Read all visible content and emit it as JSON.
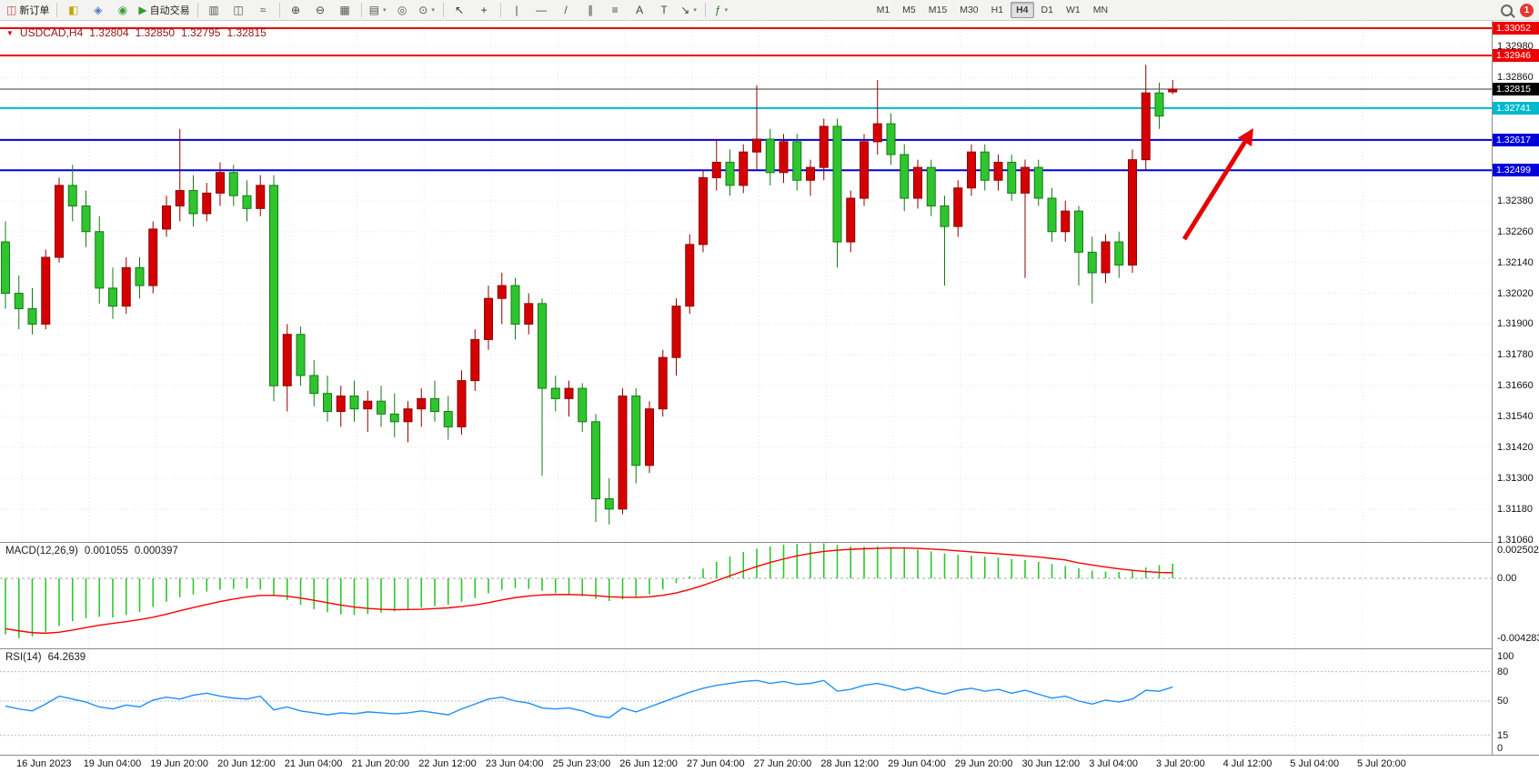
{
  "toolbar": {
    "notification_count": "1",
    "timeframes": [
      "M1",
      "M5",
      "M15",
      "M30",
      "H1",
      "H4",
      "D1",
      "W1",
      "MN"
    ],
    "active_timeframe": "H4",
    "items": [
      {
        "type": "button",
        "name": "new-order-button",
        "glyph": "◫",
        "glyph_color": "#b05050",
        "label": "新订单"
      },
      {
        "type": "sep"
      },
      {
        "type": "button",
        "name": "market-watch-button",
        "glyph": "◧",
        "glyph_color": "#c8a200"
      },
      {
        "type": "button",
        "name": "navigator-button",
        "glyph": "◈",
        "glyph_color": "#4a76b8"
      },
      {
        "type": "button",
        "name": "terminal-button",
        "glyph": "◉",
        "glyph_color": "#3f9e3f"
      },
      {
        "type": "button",
        "name": "autotrade-button",
        "glyph": "▶",
        "glyph_color": "#2e9e2e",
        "label": "自动交易"
      },
      {
        "type": "sep"
      },
      {
        "type": "button",
        "name": "bar-chart-button",
        "glyph": "▥",
        "glyph_color": "#555555"
      },
      {
        "type": "button",
        "name": "candlestick-button",
        "glyph": "◫",
        "glyph_color": "#555555"
      },
      {
        "type": "button",
        "name": "line-chart-button",
        "glyph": "≈",
        "glyph_color": "#555555"
      },
      {
        "type": "sep"
      },
      {
        "type": "button",
        "name": "zoom-in-button",
        "glyph": "⊕",
        "glyph_color": "#444444"
      },
      {
        "type": "button",
        "name": "zoom-out-button",
        "glyph": "⊖",
        "glyph_color": "#444444"
      },
      {
        "type": "button",
        "name": "tile-windows-button",
        "glyph": "▦",
        "glyph_color": "#555555"
      },
      {
        "type": "sep"
      },
      {
        "type": "button",
        "name": "new-chart-button",
        "glyph": "▤",
        "glyph_color": "#555555",
        "dropdown": true
      },
      {
        "type": "button",
        "name": "auto-scroll-button",
        "glyph": "◎",
        "glyph_color": "#555555"
      },
      {
        "type": "button",
        "name": "chart-shift-button",
        "glyph": "⊙",
        "glyph_color": "#555555",
        "dropdown": true
      },
      {
        "type": "sep"
      },
      {
        "type": "button",
        "name": "cursor-button",
        "glyph": "↖",
        "glyph_color": "#333333"
      },
      {
        "type": "button",
        "name": "crosshair-button",
        "glyph": "+",
        "glyph_color": "#333333"
      },
      {
        "type": "sep"
      },
      {
        "type": "button",
        "name": "vertical-line-button",
        "glyph": "|",
        "glyph_color": "#444444"
      },
      {
        "type": "button",
        "name": "horizontal-line-button",
        "glyph": "—",
        "glyph_color": "#444444"
      },
      {
        "type": "button",
        "name": "trendline-button",
        "glyph": "/",
        "glyph_color": "#444444"
      },
      {
        "type": "button",
        "name": "channel-button",
        "glyph": "∥",
        "glyph_color": "#444444"
      },
      {
        "type": "button",
        "name": "fibonacci-button",
        "glyph": "≡",
        "glyph_color": "#444444"
      },
      {
        "type": "button",
        "name": "text-button",
        "glyph": "A",
        "glyph_color": "#444444"
      },
      {
        "type": "button",
        "name": "label-button",
        "glyph": "T",
        "glyph_color": "#444444"
      },
      {
        "type": "button",
        "name": "arrow-tools-button",
        "glyph": "↘",
        "glyph_color": "#444444",
        "dropdown": true
      },
      {
        "type": "sep"
      },
      {
        "type": "button",
        "name": "indicators-button",
        "glyph": "ƒ",
        "glyph_color": "#2e7d32",
        "dropdown": true
      }
    ]
  },
  "quote_bar": {
    "symbol": "USDCAD,H4",
    "open": "1.32804",
    "high": "1.32850",
    "low": "1.32795",
    "close": "1.32815"
  },
  "price_axis": {
    "labels": [
      "1.32980",
      "1.32860",
      "1.32740",
      "1.32620",
      "1.32500",
      "1.32380",
      "1.32260",
      "1.32140",
      "1.32020",
      "1.31900",
      "1.31780",
      "1.31660",
      "1.31540",
      "1.31420",
      "1.31300",
      "1.31180",
      "1.31060"
    ]
  },
  "levels": [
    {
      "price": 1.33052,
      "label": "1.33052",
      "color": "#ee0000"
    },
    {
      "price": 1.32946,
      "label": "1.32946",
      "color": "#ee0000"
    },
    {
      "price": 1.32741,
      "label": "1.32741",
      "color": "#00b9cc"
    },
    {
      "price": 1.32617,
      "label": "1.32617",
      "color": "#0000dd"
    },
    {
      "price": 1.32499,
      "label": "1.32499",
      "color": "#0000dd"
    }
  ],
  "current_price": {
    "value": 1.32815,
    "label": "1.32815",
    "line_color": "#3a3a3a",
    "tag_color": "#000000"
  },
  "time_axis": {
    "labels": [
      "16 Jun 2023",
      "19 Jun 04:00",
      "19 Jun 20:00",
      "20 Jun 12:00",
      "21 Jun 04:00",
      "21 Jun 20:00",
      "22 Jun 12:00",
      "23 Jun 04:00",
      "25 Jun 23:00",
      "26 Jun 12:00",
      "27 Jun 04:00",
      "27 Jun 20:00",
      "28 Jun 12:00",
      "29 Jun 04:00",
      "29 Jun 20:00",
      "30 Jun 12:00",
      "3 Jul 04:00",
      "3 Jul 20:00",
      "4 Jul 12:00",
      "5 Jul 04:00",
      "5 Jul 20:00"
    ]
  },
  "indicators": {
    "macd": {
      "title": "MACD(12,26,9)",
      "value_main": "0.001055",
      "value_signal": "0.000397",
      "axis_labels": [
        {
          "text": "0.002502",
          "value": 0.002502
        },
        {
          "text": "0.00",
          "value": 0.0
        },
        {
          "text": "-0.004283",
          "value": -0.004283
        }
      ]
    },
    "rsi": {
      "title": "RSI(14)",
      "value": "64.2639",
      "axis_labels": [
        {
          "text": "100",
          "value": 100
        },
        {
          "text": "80",
          "value": 80
        },
        {
          "text": "50",
          "value": 50
        },
        {
          "text": "15",
          "value": 15
        },
        {
          "text": "0",
          "value": 0
        }
      ],
      "level_lines": [
        80,
        50,
        15
      ]
    }
  },
  "colors": {
    "candle_up": "#d40000",
    "candle_up_border": "#8f0000",
    "candle_down": "#2fc52f",
    "candle_down_border": "#157a15",
    "macd_histogram": "#2fc52f",
    "macd_signal": "#ff0000",
    "rsi_line": "#1e90ff",
    "grid": "#e6e6e6",
    "arrow": "#e60000"
  },
  "chart_data": {
    "type": "candlestick",
    "symbol": "USDCAD",
    "timeframe": "H4",
    "y_axis": {
      "top_price": 1.33052,
      "bottom_price": 1.31047,
      "tick_step": 0.0012
    },
    "candles": [
      [
        1.3222,
        1.323,
        1.3196,
        1.3202
      ],
      [
        1.3202,
        1.3209,
        1.3188,
        1.3196
      ],
      [
        1.3196,
        1.3204,
        1.3186,
        1.319
      ],
      [
        1.319,
        1.3219,
        1.3188,
        1.3216
      ],
      [
        1.3216,
        1.3247,
        1.3214,
        1.3244
      ],
      [
        1.3244,
        1.3252,
        1.323,
        1.3236
      ],
      [
        1.3236,
        1.3242,
        1.322,
        1.3226
      ],
      [
        1.3226,
        1.3232,
        1.3198,
        1.3204
      ],
      [
        1.3204,
        1.3212,
        1.3192,
        1.3197
      ],
      [
        1.3197,
        1.3216,
        1.3194,
        1.3212
      ],
      [
        1.3212,
        1.3216,
        1.32,
        1.3205
      ],
      [
        1.3205,
        1.323,
        1.3202,
        1.3227
      ],
      [
        1.3227,
        1.324,
        1.3224,
        1.3236
      ],
      [
        1.3236,
        1.3266,
        1.323,
        1.3242
      ],
      [
        1.3242,
        1.3248,
        1.3228,
        1.3233
      ],
      [
        1.3233,
        1.3245,
        1.323,
        1.3241
      ],
      [
        1.3241,
        1.3253,
        1.3236,
        1.3249
      ],
      [
        1.3249,
        1.3252,
        1.3236,
        1.324
      ],
      [
        1.324,
        1.3246,
        1.323,
        1.3235
      ],
      [
        1.3235,
        1.3248,
        1.3232,
        1.3244
      ],
      [
        1.3244,
        1.3248,
        1.316,
        1.3166
      ],
      [
        1.3166,
        1.319,
        1.3156,
        1.3186
      ],
      [
        1.3186,
        1.3189,
        1.3166,
        1.317
      ],
      [
        1.317,
        1.3176,
        1.3158,
        1.3163
      ],
      [
        1.3163,
        1.317,
        1.3152,
        1.3156
      ],
      [
        1.3156,
        1.3166,
        1.315,
        1.3162
      ],
      [
        1.3162,
        1.3168,
        1.3152,
        1.3157
      ],
      [
        1.3157,
        1.3164,
        1.3148,
        1.316
      ],
      [
        1.316,
        1.3166,
        1.315,
        1.3155
      ],
      [
        1.3155,
        1.3163,
        1.3146,
        1.3152
      ],
      [
        1.3152,
        1.316,
        1.3144,
        1.3157
      ],
      [
        1.3157,
        1.3165,
        1.315,
        1.3161
      ],
      [
        1.3161,
        1.3168,
        1.3152,
        1.3156
      ],
      [
        1.3156,
        1.3162,
        1.3145,
        1.315
      ],
      [
        1.315,
        1.3172,
        1.3147,
        1.3168
      ],
      [
        1.3168,
        1.3188,
        1.3164,
        1.3184
      ],
      [
        1.3184,
        1.3205,
        1.318,
        1.32
      ],
      [
        1.32,
        1.321,
        1.319,
        1.3205
      ],
      [
        1.3205,
        1.3208,
        1.3184,
        1.319
      ],
      [
        1.319,
        1.3202,
        1.3186,
        1.3198
      ],
      [
        1.3198,
        1.32,
        1.3131,
        1.3165
      ],
      [
        1.3165,
        1.317,
        1.3156,
        1.3161
      ],
      [
        1.3161,
        1.3168,
        1.3154,
        1.3165
      ],
      [
        1.3165,
        1.3167,
        1.3148,
        1.3152
      ],
      [
        1.3152,
        1.3155,
        1.3113,
        1.3122
      ],
      [
        1.3122,
        1.313,
        1.3112,
        1.3118
      ],
      [
        1.3118,
        1.3165,
        1.3116,
        1.3162
      ],
      [
        1.3162,
        1.3165,
        1.3128,
        1.3135
      ],
      [
        1.3135,
        1.316,
        1.3132,
        1.3157
      ],
      [
        1.3157,
        1.318,
        1.3154,
        1.3177
      ],
      [
        1.3177,
        1.32,
        1.317,
        1.3197
      ],
      [
        1.3197,
        1.3225,
        1.3194,
        1.3221
      ],
      [
        1.3221,
        1.325,
        1.3218,
        1.3247
      ],
      [
        1.3247,
        1.3262,
        1.3242,
        1.3253
      ],
      [
        1.3253,
        1.3258,
        1.324,
        1.3244
      ],
      [
        1.3244,
        1.326,
        1.3241,
        1.3257
      ],
      [
        1.3257,
        1.3283,
        1.325,
        1.3262
      ],
      [
        1.3262,
        1.3266,
        1.3244,
        1.3249
      ],
      [
        1.3249,
        1.3264,
        1.3245,
        1.3261
      ],
      [
        1.3261,
        1.3264,
        1.3242,
        1.3246
      ],
      [
        1.3246,
        1.3254,
        1.324,
        1.3251
      ],
      [
        1.3251,
        1.327,
        1.3246,
        1.3267
      ],
      [
        1.3267,
        1.327,
        1.3212,
        1.3222
      ],
      [
        1.3222,
        1.3242,
        1.3218,
        1.3239
      ],
      [
        1.3239,
        1.3264,
        1.3236,
        1.3261
      ],
      [
        1.3261,
        1.3285,
        1.3256,
        1.3268
      ],
      [
        1.3268,
        1.3272,
        1.3252,
        1.3256
      ],
      [
        1.3256,
        1.326,
        1.3234,
        1.3239
      ],
      [
        1.3239,
        1.3254,
        1.3235,
        1.3251
      ],
      [
        1.3251,
        1.3254,
        1.3232,
        1.3236
      ],
      [
        1.3236,
        1.324,
        1.3205,
        1.3228
      ],
      [
        1.3228,
        1.3246,
        1.3224,
        1.3243
      ],
      [
        1.3243,
        1.326,
        1.324,
        1.3257
      ],
      [
        1.3257,
        1.326,
        1.3242,
        1.3246
      ],
      [
        1.3246,
        1.3256,
        1.3242,
        1.3253
      ],
      [
        1.3253,
        1.3256,
        1.3238,
        1.3241
      ],
      [
        1.3241,
        1.3254,
        1.3208,
        1.3251
      ],
      [
        1.3251,
        1.3254,
        1.3236,
        1.3239
      ],
      [
        1.3239,
        1.3243,
        1.3222,
        1.3226
      ],
      [
        1.3226,
        1.3238,
        1.3222,
        1.3234
      ],
      [
        1.3234,
        1.3236,
        1.3205,
        1.3218
      ],
      [
        1.3218,
        1.3224,
        1.3198,
        1.321
      ],
      [
        1.321,
        1.3225,
        1.3206,
        1.3222
      ],
      [
        1.3222,
        1.3226,
        1.3208,
        1.3213
      ],
      [
        1.3213,
        1.3258,
        1.321,
        1.3254
      ],
      [
        1.3254,
        1.3291,
        1.325,
        1.328
      ],
      [
        1.328,
        1.3284,
        1.3266,
        1.3271
      ],
      [
        1.32804,
        1.3285,
        1.32795,
        1.32815
      ]
    ],
    "macd_histogram": [
      -0.004,
      -0.00428,
      -0.00415,
      -0.00385,
      -0.0034,
      -0.00305,
      -0.00285,
      -0.00275,
      -0.0028,
      -0.00262,
      -0.0024,
      -0.00205,
      -0.00168,
      -0.00135,
      -0.00115,
      -0.00095,
      -0.00082,
      -0.00075,
      -0.00073,
      -0.0008,
      -0.0012,
      -0.00155,
      -0.0019,
      -0.0022,
      -0.00242,
      -0.00258,
      -0.00262,
      -0.00255,
      -0.00245,
      -0.00235,
      -0.00222,
      -0.0021,
      -0.00198,
      -0.0019,
      -0.00168,
      -0.0014,
      -0.00108,
      -0.00082,
      -0.0007,
      -0.00075,
      -0.0009,
      -0.00105,
      -0.00115,
      -0.00128,
      -0.00148,
      -0.00162,
      -0.0015,
      -0.00138,
      -0.00115,
      -0.0008,
      -0.00035,
      0.00015,
      0.0007,
      0.00118,
      0.00155,
      0.00188,
      0.00212,
      0.00228,
      0.0024,
      0.00247,
      0.0025,
      0.0025,
      0.00238,
      0.00228,
      0.00226,
      0.00228,
      0.00224,
      0.00214,
      0.00205,
      0.00192,
      0.00178,
      0.00168,
      0.00162,
      0.00155,
      0.00148,
      0.00138,
      0.0013,
      0.00118,
      0.00102,
      0.00088,
      0.00072,
      0.00055,
      0.00048,
      0.00045,
      0.00052,
      0.00078,
      0.00095,
      0.001055
    ],
    "macd_signal": [
      -0.0036,
      -0.00375,
      -0.00388,
      -0.00392,
      -0.00385,
      -0.0037,
      -0.00352,
      -0.00335,
      -0.00322,
      -0.0031,
      -0.00295,
      -0.00278,
      -0.00256,
      -0.00232,
      -0.00209,
      -0.00187,
      -0.00166,
      -0.00148,
      -0.00133,
      -0.00122,
      -0.00122,
      -0.00128,
      -0.00141,
      -0.00157,
      -0.00174,
      -0.00191,
      -0.00205,
      -0.00215,
      -0.00221,
      -0.00224,
      -0.00223,
      -0.00221,
      -0.00216,
      -0.00211,
      -0.00202,
      -0.0019,
      -0.00174,
      -0.00155,
      -0.00138,
      -0.00126,
      -0.00119,
      -0.00116,
      -0.00116,
      -0.00118,
      -0.00124,
      -0.00132,
      -0.00135,
      -0.00136,
      -0.00132,
      -0.00121,
      -0.00104,
      -0.0008,
      -0.0005,
      -0.00017,
      0.00018,
      0.00052,
      0.00084,
      0.00113,
      0.00138,
      0.0016,
      0.00178,
      0.00192,
      0.00201,
      0.00207,
      0.00211,
      0.00214,
      0.00216,
      0.00216,
      0.00214,
      0.00209,
      0.00203,
      0.00196,
      0.00189,
      0.00182,
      0.00176,
      0.00168,
      0.0016,
      0.00152,
      0.00142,
      0.00131,
      0.0011,
      0.00095,
      0.00081,
      0.00068,
      0.00057,
      0.00048,
      0.00042,
      0.000397
    ],
    "rsi": [
      45,
      42,
      40,
      47,
      55,
      52,
      49,
      44,
      42,
      46,
      44,
      51,
      54,
      52,
      56,
      58,
      55,
      53,
      52,
      55,
      41,
      44,
      40,
      38,
      36,
      38,
      37,
      39,
      38,
      37,
      38,
      40,
      38,
      36,
      42,
      47,
      52,
      54,
      50,
      48,
      43,
      42,
      43,
      40,
      35,
      33,
      43,
      39,
      44,
      49,
      54,
      59,
      63,
      66,
      68,
      70,
      71,
      68,
      70,
      67,
      68,
      71,
      60,
      62,
      66,
      68,
      65,
      61,
      64,
      60,
      57,
      61,
      63,
      60,
      62,
      58,
      61,
      57,
      53,
      55,
      50,
      47,
      51,
      49,
      52,
      61,
      60,
      64.26
    ]
  },
  "annotation_arrow": {
    "color": "#e60000"
  }
}
